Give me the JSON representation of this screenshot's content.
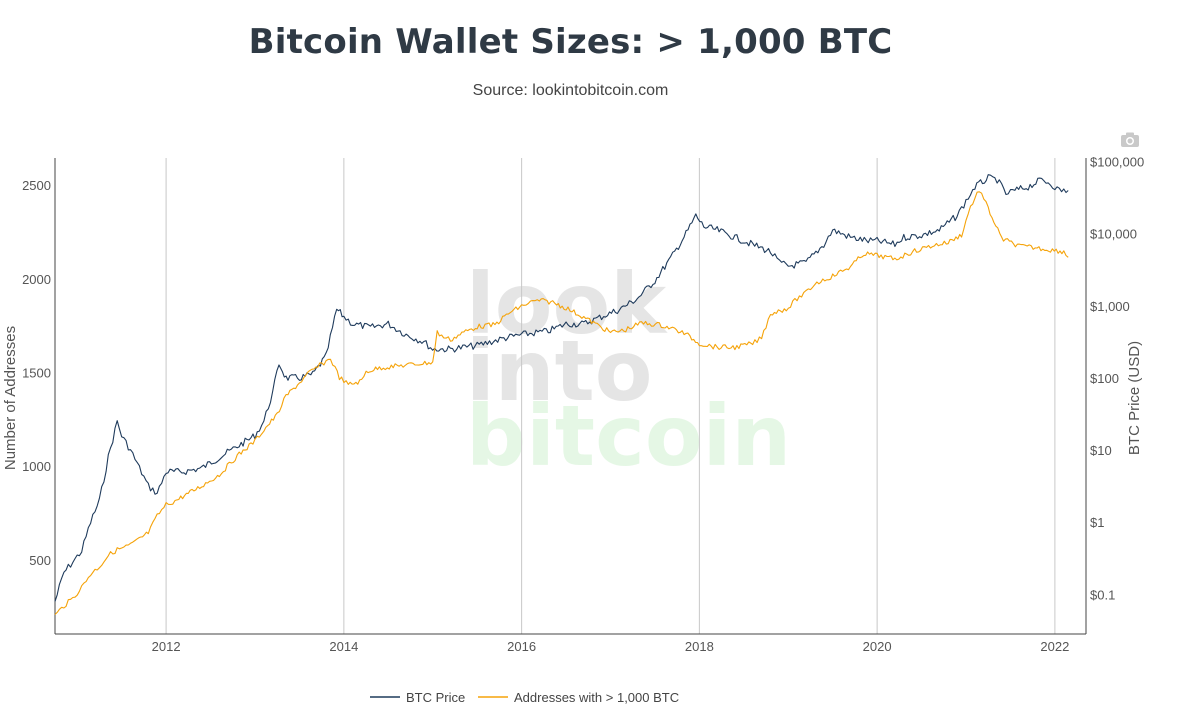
{
  "title": "Bitcoin Wallet Sizes: > 1,000 BTC",
  "subtitle": "Source: lookintobitcoin.com",
  "toolbar": {
    "camera_icon": "camera-icon"
  },
  "watermark": {
    "line1": "look",
    "line2": "into",
    "line3": "bitcoin"
  },
  "colors": {
    "btc_price": "#1f3b5c",
    "addresses": "#f5a30a",
    "grid": "#c8c8c8",
    "axis": "#444444"
  },
  "chart_data": {
    "type": "line",
    "title": "Bitcoin Wallet Sizes: > 1,000 BTC",
    "xlabel": "",
    "ylabel": "Number of Addresses",
    "y2label": "BTC Price (USD)",
    "xlim": [
      2010.75,
      2022.35
    ],
    "ylim": [
      110,
      2650
    ],
    "y2scale": "log",
    "y2lim_log10": [
      -1.55,
      5.05
    ],
    "x_ticks": [
      2012,
      2014,
      2016,
      2018,
      2020,
      2022
    ],
    "x_tick_labels": [
      "2012",
      "2014",
      "2016",
      "2018",
      "2020",
      "2022"
    ],
    "y_ticks": [
      500,
      1000,
      1500,
      2000,
      2500
    ],
    "y_tick_labels": [
      "500",
      "1000",
      "1500",
      "2000",
      "2500"
    ],
    "y2_ticks_log10": [
      -1,
      0,
      1,
      2,
      3,
      4,
      5
    ],
    "y2_tick_labels": [
      "$0.1",
      "$1",
      "$10",
      "$100",
      "$1,000",
      "$10,000",
      "$100,000"
    ],
    "legend_position": "bottom-center",
    "series": [
      {
        "name": "BTC Price",
        "axis": "right",
        "x": [
          2010.75,
          2010.85,
          2010.95,
          2011.05,
          2011.15,
          2011.25,
          2011.35,
          2011.45,
          2011.5,
          2011.6,
          2011.7,
          2011.8,
          2011.9,
          2012.0,
          2012.2,
          2012.4,
          2012.6,
          2012.8,
          2013.0,
          2013.1,
          2013.2,
          2013.27,
          2013.35,
          2013.5,
          2013.65,
          2013.8,
          2013.92,
          2014.0,
          2014.1,
          2014.3,
          2014.5,
          2014.7,
          2014.9,
          2015.0,
          2015.2,
          2015.5,
          2015.8,
          2016.0,
          2016.3,
          2016.5,
          2016.7,
          2016.9,
          2017.1,
          2017.3,
          2017.5,
          2017.7,
          2017.85,
          2017.96,
          2018.05,
          2018.2,
          2018.4,
          2018.6,
          2018.8,
          2018.9,
          2019.0,
          2019.2,
          2019.4,
          2019.5,
          2019.7,
          2019.9,
          2020.0,
          2020.2,
          2020.3,
          2020.5,
          2020.7,
          2020.9,
          2021.0,
          2021.1,
          2021.25,
          2021.35,
          2021.45,
          2021.55,
          2021.7,
          2021.85,
          2021.95,
          2022.05,
          2022.15
        ],
        "y_log10": [
          -1.1,
          -0.7,
          -0.55,
          -0.4,
          0.0,
          0.3,
          0.9,
          1.4,
          1.2,
          1.0,
          0.75,
          0.5,
          0.4,
          0.7,
          0.7,
          0.75,
          0.9,
          1.05,
          1.2,
          1.4,
          1.8,
          2.2,
          2.0,
          2.0,
          2.05,
          2.3,
          2.95,
          2.85,
          2.75,
          2.7,
          2.75,
          2.6,
          2.5,
          2.4,
          2.4,
          2.45,
          2.55,
          2.6,
          2.65,
          2.75,
          2.75,
          2.85,
          2.95,
          3.1,
          3.35,
          3.7,
          4.0,
          4.25,
          4.1,
          4.05,
          3.95,
          3.85,
          3.75,
          3.6,
          3.55,
          3.6,
          3.85,
          4.05,
          3.95,
          3.9,
          3.9,
          3.85,
          3.95,
          3.98,
          4.05,
          4.25,
          4.45,
          4.65,
          4.77,
          4.75,
          4.55,
          4.6,
          4.65,
          4.75,
          4.7,
          4.6,
          4.6
        ]
      },
      {
        "name": "Addresses with > 1,000 BTC",
        "axis": "left",
        "x": [
          2010.75,
          2010.85,
          2010.95,
          2011.05,
          2011.15,
          2011.25,
          2011.35,
          2011.45,
          2011.55,
          2011.65,
          2011.8,
          2011.9,
          2012.0,
          2012.1,
          2012.25,
          2012.4,
          2012.6,
          2012.8,
          2013.0,
          2013.1,
          2013.25,
          2013.35,
          2013.5,
          2013.6,
          2013.75,
          2013.85,
          2013.95,
          2014.05,
          2014.2,
          2014.25,
          2014.4,
          2014.6,
          2014.8,
          2015.0,
          2015.05,
          2015.1,
          2015.2,
          2015.35,
          2015.5,
          2015.7,
          2015.85,
          2016.0,
          2016.1,
          2016.2,
          2016.35,
          2016.5,
          2016.7,
          2016.85,
          2017.0,
          2017.15,
          2017.35,
          2017.55,
          2017.7,
          2017.85,
          2018.0,
          2018.2,
          2018.4,
          2018.6,
          2018.7,
          2018.8,
          2019.0,
          2019.1,
          2019.2,
          2019.3,
          2019.5,
          2019.7,
          2019.85,
          2020.0,
          2020.2,
          2020.4,
          2020.6,
          2020.8,
          2020.95,
          2021.05,
          2021.15,
          2021.25,
          2021.4,
          2021.6,
          2021.8,
          2021.95,
          2022.1,
          2022.15
        ],
        "y": [
          210,
          260,
          300,
          360,
          430,
          470,
          530,
          560,
          575,
          600,
          650,
          740,
          800,
          820,
          860,
          900,
          960,
          1060,
          1140,
          1200,
          1280,
          1380,
          1450,
          1500,
          1550,
          1580,
          1480,
          1440,
          1460,
          1510,
          1530,
          1540,
          1550,
          1560,
          1720,
          1700,
          1680,
          1720,
          1750,
          1760,
          1820,
          1860,
          1880,
          1890,
          1880,
          1850,
          1800,
          1760,
          1720,
          1730,
          1770,
          1760,
          1740,
          1710,
          1660,
          1640,
          1640,
          1660,
          1690,
          1820,
          1850,
          1900,
          1930,
          1980,
          2020,
          2070,
          2140,
          2130,
          2110,
          2150,
          2180,
          2200,
          2240,
          2390,
          2480,
          2380,
          2220,
          2180,
          2170,
          2160,
          2150,
          2120
        ]
      }
    ]
  },
  "legend": {
    "items": [
      {
        "label": "BTC Price",
        "color": "#1f3b5c"
      },
      {
        "label": "Addresses with > 1,000 BTC",
        "color": "#f5a30a"
      }
    ]
  }
}
